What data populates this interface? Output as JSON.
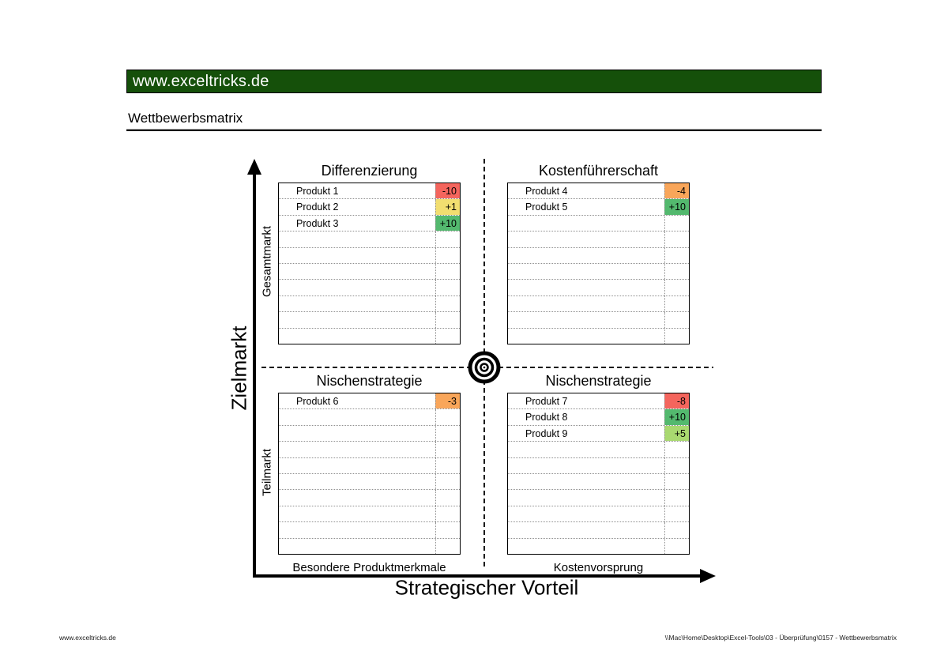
{
  "header": {
    "brand": "www.exceltricks.de",
    "page_title": "Wettbewerbsmatrix",
    "bar_color": "#15500a"
  },
  "matrix": {
    "y_axis": {
      "title": "Zielmarkt",
      "top_label": "Gesamtmarkt",
      "bottom_label": "Teilmarkt"
    },
    "x_axis": {
      "title": "Strategischer Vorteil",
      "left_label": "Besondere Produktmerkmale",
      "right_label": "Kostenvorsprung"
    },
    "quadrants": [
      {
        "position": "top-left",
        "title": "Differenzierung",
        "total_rows": 10,
        "products": [
          {
            "name": "Produkt 1",
            "value": "-10",
            "color": "#f4655d"
          },
          {
            "name": "Produkt 2",
            "value": "+1",
            "color": "#f2de70"
          },
          {
            "name": "Produkt 3",
            "value": "+10",
            "color": "#53b96e"
          }
        ]
      },
      {
        "position": "top-right",
        "title": "Kostenführerschaft",
        "total_rows": 10,
        "products": [
          {
            "name": "Produkt 4",
            "value": "-4",
            "color": "#f9a65a"
          },
          {
            "name": "Produkt 5",
            "value": "+10",
            "color": "#53b96e"
          }
        ]
      },
      {
        "position": "bottom-left",
        "title": "Nischenstrategie",
        "total_rows": 10,
        "products": [
          {
            "name": "Produkt 6",
            "value": "-3",
            "color": "#f9a65a"
          }
        ]
      },
      {
        "position": "bottom-right",
        "title": "Nischenstrategie",
        "total_rows": 10,
        "products": [
          {
            "name": "Produkt 7",
            "value": "-8",
            "color": "#f4655d"
          },
          {
            "name": "Produkt 8",
            "value": "+10",
            "color": "#53b96e"
          },
          {
            "name": "Produkt 9",
            "value": "+5",
            "color": "#a9d970"
          }
        ]
      }
    ]
  },
  "footer": {
    "left": "www.exceltricks.de",
    "right": "\\\\Mac\\Home\\Desktop\\Excel-Tools\\03 - Überprüfung\\0157 - Wettbewerbsmatrix"
  }
}
